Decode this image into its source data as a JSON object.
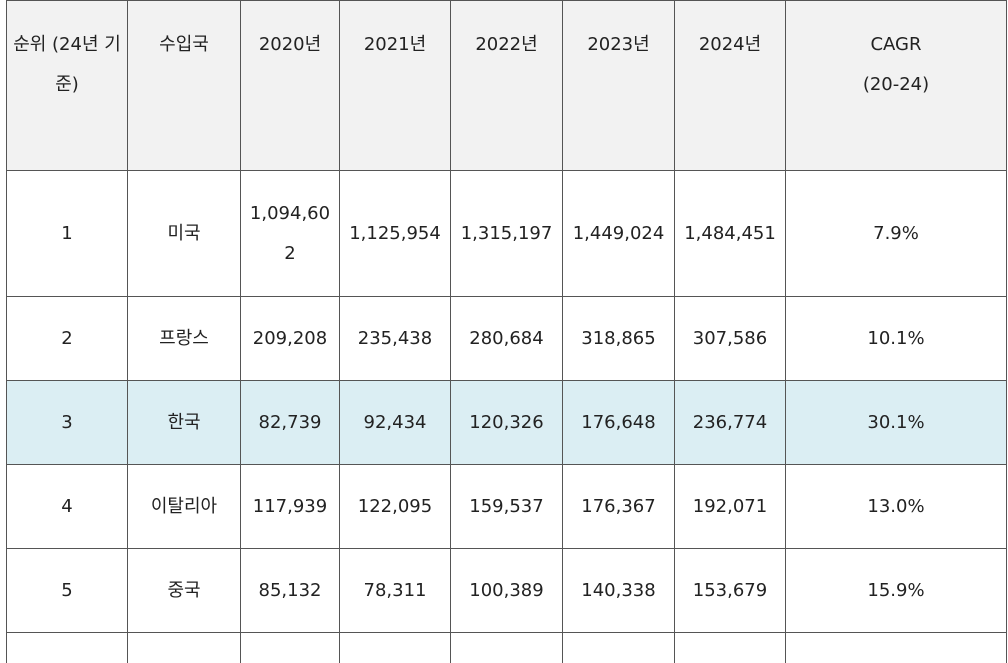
{
  "table": {
    "header": [
      "순위 (24년 기준)",
      "수입국",
      "2020년",
      "2021년",
      "2022년",
      "2023년",
      "2024년",
      "CAGR\n(20-24)"
    ],
    "rows": [
      [
        "1",
        "미국",
        "1,094,602",
        "1,125,954",
        "1,315,197",
        "1,449,024",
        "1,484,451",
        "7.9%"
      ],
      [
        "2",
        "프랑스",
        "209,208",
        "235,438",
        "280,684",
        "318,865",
        "307,586",
        "10.1%"
      ],
      [
        "3",
        "한국",
        "82,739",
        "92,434",
        "120,326",
        "176,648",
        "236,774",
        "30.1%"
      ],
      [
        "4",
        "이탈리아",
        "117,939",
        "122,095",
        "159,537",
        "176,367",
        "192,071",
        "13.0%"
      ],
      [
        "5",
        "중국",
        "85,132",
        "78,311",
        "100,389",
        "140,338",
        "153,679",
        "15.9%"
      ]
    ]
  }
}
